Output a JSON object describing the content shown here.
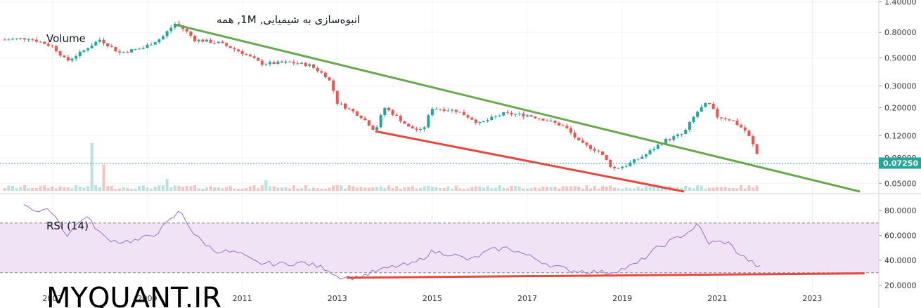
{
  "header": {
    "title": "انبوه‌سازی به شیمیایی, 1M, همه",
    "volume_label": "Volume",
    "rsi_label": "RSI (14)",
    "watermark": "MYQUANT.IR"
  },
  "colors": {
    "up": "#26a69a",
    "down": "#ef5350",
    "upper_trendline": "#6aa84f",
    "lower_trendline": "#e8473c",
    "rsi_line": "#9c6ec7",
    "rsi_band": "#efe3f5",
    "last_price": "#26a69a",
    "grid": "#f0f3fa"
  },
  "chart_data": [
    {
      "type": "candlestick",
      "name": "price",
      "scale": "log",
      "y_ticks": [
        "1.40000",
        "0.80000",
        "0.50000",
        "0.30000",
        "0.20000",
        "0.12000",
        "0.08000",
        "0.05000"
      ],
      "ylim": [
        0.043,
        1.45
      ],
      "x_ticks": [
        "2007",
        "2009",
        "2011",
        "2013",
        "2015",
        "2017",
        "2019",
        "2021",
        "2023"
      ],
      "xlim": [
        2005.9,
        2024.4
      ],
      "last_price": "0.07250",
      "waypoints": [
        [
          2006.0,
          0.7
        ],
        [
          2006.5,
          0.72
        ],
        [
          2007.0,
          0.62
        ],
        [
          2007.3,
          0.47
        ],
        [
          2007.6,
          0.55
        ],
        [
          2008.0,
          0.7
        ],
        [
          2008.4,
          0.55
        ],
        [
          2008.9,
          0.6
        ],
        [
          2009.3,
          0.72
        ],
        [
          2009.6,
          0.95
        ],
        [
          2010.0,
          0.7
        ],
        [
          2010.5,
          0.66
        ],
        [
          2011.0,
          0.55
        ],
        [
          2011.4,
          0.45
        ],
        [
          2012.0,
          0.46
        ],
        [
          2012.4,
          0.44
        ],
        [
          2012.8,
          0.35
        ],
        [
          2013.0,
          0.22
        ],
        [
          2013.5,
          0.17
        ],
        [
          2013.8,
          0.13
        ],
        [
          2014.0,
          0.2
        ],
        [
          2014.5,
          0.14
        ],
        [
          2014.8,
          0.13
        ],
        [
          2015.0,
          0.2
        ],
        [
          2015.5,
          0.19
        ],
        [
          2016.0,
          0.15
        ],
        [
          2016.5,
          0.18
        ],
        [
          2017.0,
          0.175
        ],
        [
          2017.4,
          0.16
        ],
        [
          2017.8,
          0.14
        ],
        [
          2018.1,
          0.105
        ],
        [
          2018.5,
          0.09
        ],
        [
          2018.8,
          0.065
        ],
        [
          2019.1,
          0.07
        ],
        [
          2019.5,
          0.085
        ],
        [
          2019.9,
          0.11
        ],
        [
          2020.3,
          0.125
        ],
        [
          2020.6,
          0.19
        ],
        [
          2020.8,
          0.22
        ],
        [
          2021.0,
          0.17
        ],
        [
          2021.3,
          0.16
        ],
        [
          2021.6,
          0.13
        ],
        [
          2021.9,
          0.073
        ]
      ]
    },
    {
      "type": "bar",
      "name": "volume",
      "spikes": [
        [
          2007.8,
          1.0
        ],
        [
          2008.1,
          0.55
        ],
        [
          2009.4,
          0.25
        ],
        [
          2011.5,
          0.22
        ]
      ]
    },
    {
      "type": "line",
      "name": "rsi",
      "y_ticks": [
        "80.0000",
        "60.0000",
        "40.0000",
        "20.0000"
      ],
      "ylim": [
        18,
        88
      ],
      "band": [
        30,
        70
      ],
      "waypoints": [
        [
          2006.4,
          86
        ],
        [
          2006.7,
          79
        ],
        [
          2007.0,
          80
        ],
        [
          2007.3,
          60
        ],
        [
          2007.7,
          76
        ],
        [
          2008.1,
          58
        ],
        [
          2008.4,
          55
        ],
        [
          2008.8,
          56
        ],
        [
          2009.2,
          62
        ],
        [
          2009.7,
          80
        ],
        [
          2010.0,
          60
        ],
        [
          2010.4,
          48
        ],
        [
          2010.9,
          46
        ],
        [
          2011.3,
          38
        ],
        [
          2011.8,
          37
        ],
        [
          2012.3,
          38
        ],
        [
          2012.8,
          33
        ],
        [
          2013.0,
          27
        ],
        [
          2013.4,
          26
        ],
        [
          2013.8,
          31
        ],
        [
          2014.2,
          35
        ],
        [
          2014.6,
          37
        ],
        [
          2015.0,
          47
        ],
        [
          2015.4,
          45
        ],
        [
          2015.8,
          40
        ],
        [
          2016.2,
          48
        ],
        [
          2016.6,
          50
        ],
        [
          2017.0,
          44
        ],
        [
          2017.5,
          36
        ],
        [
          2017.9,
          32
        ],
        [
          2018.3,
          31
        ],
        [
          2018.7,
          30
        ],
        [
          2019.0,
          33
        ],
        [
          2019.3,
          37
        ],
        [
          2019.7,
          49
        ],
        [
          2020.0,
          55
        ],
        [
          2020.4,
          63
        ],
        [
          2020.6,
          69
        ],
        [
          2020.8,
          54
        ],
        [
          2021.2,
          55
        ],
        [
          2021.5,
          44
        ],
        [
          2021.9,
          34
        ]
      ]
    }
  ],
  "trendlines": {
    "upper": {
      "price_from": [
        2009.6,
        0.92
      ],
      "price_to": [
        2024.0,
        0.043
      ]
    },
    "lower": {
      "price_from": [
        2013.8,
        0.13
      ],
      "price_to": [
        2020.3,
        0.043
      ]
    },
    "rsi_support": {
      "rsi_from": [
        2013.2,
        26
      ],
      "rsi_to": [
        2024.1,
        29.5
      ]
    }
  }
}
